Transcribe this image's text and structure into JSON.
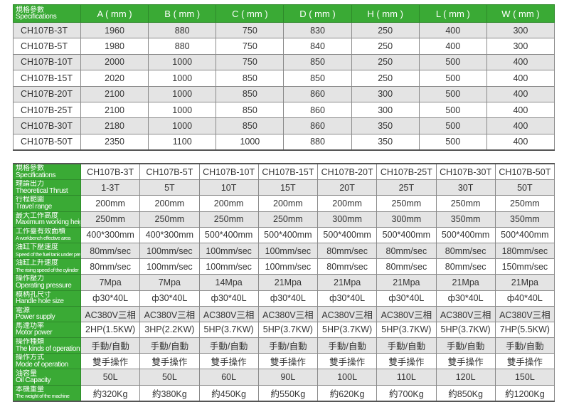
{
  "accent_color": "#3aaa35",
  "dimensions_table": {
    "spec_label_zh": "規格參數",
    "spec_label_en": "Specifications",
    "columns": [
      "A ( mm )",
      "B ( mm )",
      "C ( mm )",
      "D ( mm )",
      "H ( mm )",
      "L ( mm )",
      "W ( mm )"
    ],
    "rows": [
      {
        "model": "CH107B-3T",
        "values": [
          "1960",
          "880",
          "750",
          "830",
          "250",
          "400",
          "300"
        ]
      },
      {
        "model": "CH107B-5T",
        "values": [
          "1980",
          "880",
          "750",
          "840",
          "250",
          "400",
          "300"
        ]
      },
      {
        "model": "CH107B-10T",
        "values": [
          "2000",
          "1000",
          "750",
          "850",
          "250",
          "500",
          "400"
        ]
      },
      {
        "model": "CH107B-15T",
        "values": [
          "2020",
          "1000",
          "850",
          "850",
          "250",
          "500",
          "400"
        ]
      },
      {
        "model": "CH107B-20T",
        "values": [
          "2100",
          "1000",
          "850",
          "860",
          "300",
          "500",
          "400"
        ]
      },
      {
        "model": "CH107B-25T",
        "values": [
          "2100",
          "1000",
          "850",
          "860",
          "300",
          "500",
          "400"
        ]
      },
      {
        "model": "CH107B-30T",
        "values": [
          "2180",
          "1000",
          "850",
          "860",
          "350",
          "500",
          "400"
        ]
      },
      {
        "model": "CH107B-50T",
        "values": [
          "2350",
          "1100",
          "1000",
          "880",
          "350",
          "500",
          "400"
        ]
      }
    ]
  },
  "specs_table": {
    "rows": [
      {
        "zh": "規格參數",
        "en": "Specifications",
        "values": [
          "CH107B-3T",
          "CH107B-5T",
          "CH107B-10T",
          "CH107B-15T",
          "CH107B-20T",
          "CH107B-25T",
          "CH107B-30T",
          "CH107B-50T"
        ]
      },
      {
        "zh": "理論出力",
        "en": "Theoretical Thrust",
        "values": [
          "1-3T",
          "5T",
          "10T",
          "15T",
          "20T",
          "25T",
          "30T",
          "50T"
        ]
      },
      {
        "zh": "行程範圍",
        "en": "Travel range",
        "values": [
          "200mm",
          "200mm",
          "200mm",
          "200mm",
          "200mm",
          "250mm",
          "250mm",
          "250mm"
        ]
      },
      {
        "zh": "最大工作高度",
        "en": "Maximum working height",
        "values": [
          "250mm",
          "250mm",
          "250mm",
          "250mm",
          "300mm",
          "300mm",
          "350mm",
          "350mm"
        ]
      },
      {
        "zh": "工作臺有效面積",
        "en": "A workbench effective area",
        "values": [
          "400*300mm",
          "400*300mm",
          "500*400mm",
          "500*400mm",
          "500*400mm",
          "500*400mm",
          "500*400mm",
          "500*400mm"
        ]
      },
      {
        "zh": "油缸下壓速度",
        "en": "Speed of the fuel tank under pressure",
        "values": [
          "80mm/sec",
          "100mm/sec",
          "100mm/sec",
          "100mm/sec",
          "80mm/sec",
          "80mm/sec",
          "80mm/sec",
          "180mm/sec"
        ]
      },
      {
        "zh": "油缸上升速度",
        "en": "The rising speed of the cylinder",
        "values": [
          "80mm/sec",
          "100mm/sec",
          "100mm/sec",
          "100mm/sec",
          "80mm/sec",
          "80mm/sec",
          "80mm/sec",
          "150mm/sec"
        ]
      },
      {
        "zh": "操作壓力",
        "en": "Operating pressure",
        "values": [
          "7Mpa",
          "7Mpa",
          "14Mpa",
          "21Mpa",
          "21Mpa",
          "21Mpa",
          "21Mpa",
          "21Mpa"
        ]
      },
      {
        "zh": "模柄孔尺寸",
        "en": "Handle hole size",
        "values": [
          "ф30*40L",
          "ф30*40L",
          "ф30*40L",
          "ф30*40L",
          "ф30*40L",
          "ф30*40L",
          "ф30*40L",
          "ф40*40L"
        ]
      },
      {
        "zh": "電源",
        "en": "Power supply",
        "values": [
          "AC380V三相",
          "AC380V三相",
          "AC380V三相",
          "AC380V三相",
          "AC380V三相",
          "AC380V三相",
          "AC380V三相",
          "AC380V三相"
        ]
      },
      {
        "zh": "馬達功率",
        "en": "Motor power",
        "values": [
          "2HP(1.5KW)",
          "3HP(2.2KW)",
          "5HP(3.7KW)",
          "5HP(3.7KW)",
          "5HP(3.7KW)",
          "5HP(3.7KW)",
          "5HP(3.7KW)",
          "7HP(5.5KW)"
        ]
      },
      {
        "zh": "操作種類",
        "en": "The kinds of operations",
        "values": [
          "手動/自動",
          "手動/自動",
          "手動/自動",
          "手動/自動",
          "手動/自動",
          "手動/自動",
          "手動/自動",
          "手動/自動"
        ]
      },
      {
        "zh": "操作方式",
        "en": "Mode of operation",
        "values": [
          "雙手操作",
          "雙手操作",
          "雙手操作",
          "雙手操作",
          "雙手操作",
          "雙手操作",
          "雙手操作",
          "雙手操作"
        ]
      },
      {
        "zh": "油容量",
        "en": "Oil Capacity",
        "values": [
          "50L",
          "50L",
          "60L",
          "90L",
          "100L",
          "110L",
          "120L",
          "150L"
        ]
      },
      {
        "zh": "本機重量",
        "en": "The weight of the machine",
        "values": [
          "約320Kg",
          "約380Kg",
          "約450Kg",
          "約550Kg",
          "約620Kg",
          "約700Kg",
          "約850Kg",
          "約1200Kg"
        ]
      }
    ]
  }
}
